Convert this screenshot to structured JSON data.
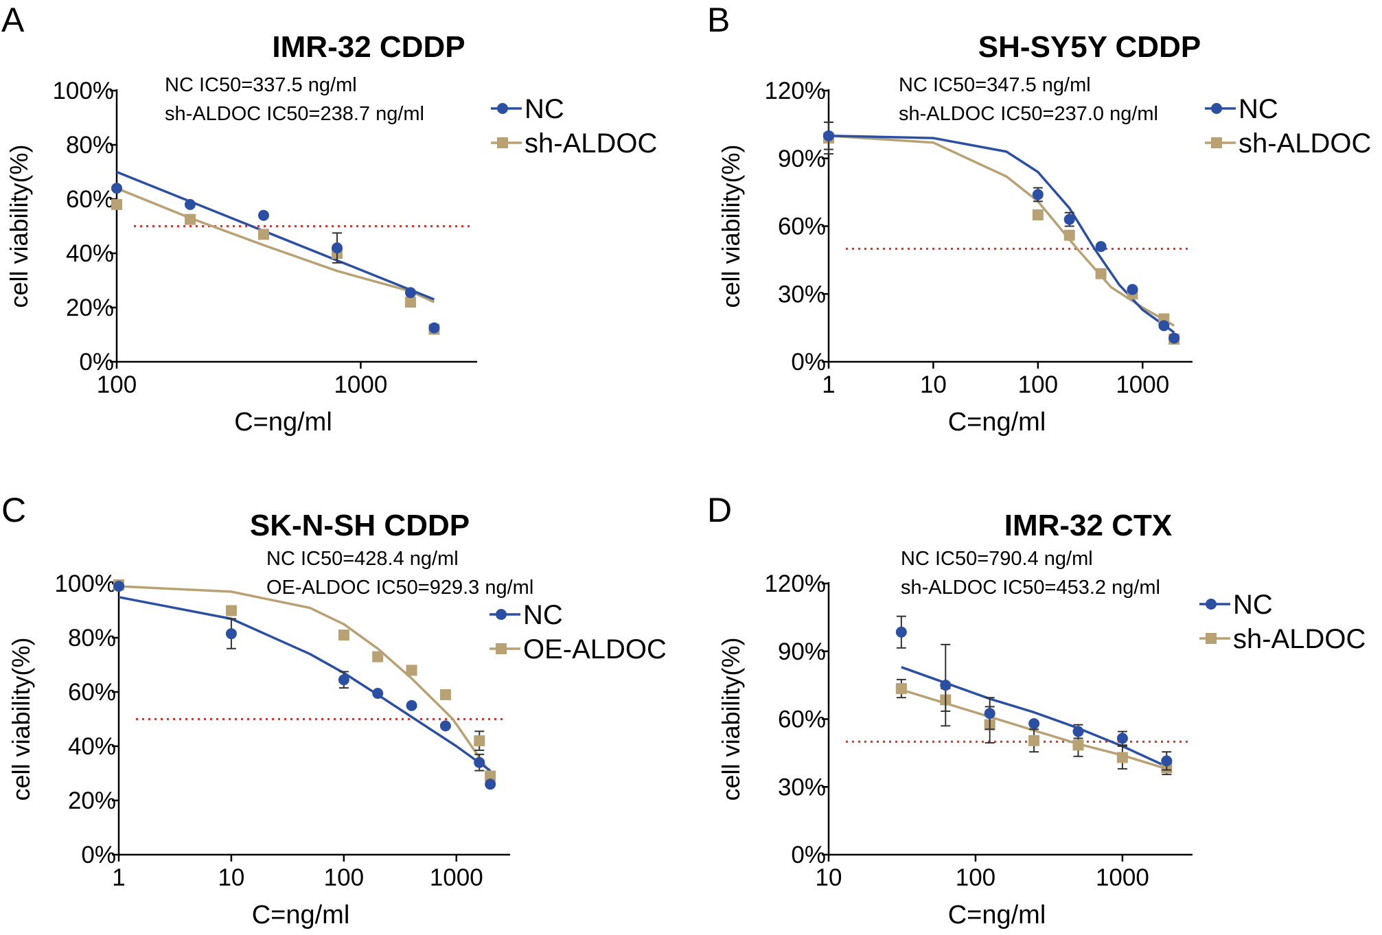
{
  "colors": {
    "nc": "#2b4fa3",
    "sh": "#b8a173",
    "ref": "#e0302a",
    "axis": "#000000"
  },
  "chart_data": [
    {
      "panel": "A",
      "type": "scatter",
      "title": "IMR-32 CDDP",
      "xlabel": "C=ng/ml",
      "ylabel": "cell viability(%)",
      "xscale": "log",
      "xlim": [
        100,
        3000
      ],
      "ylim": [
        0,
        100
      ],
      "xticks": [
        100,
        1000
      ],
      "xtick_labels": [
        "100",
        "1000"
      ],
      "yticks": [
        0,
        20,
        40,
        60,
        80,
        100
      ],
      "ytick_labels": [
        "0%",
        "20%",
        "40%",
        "60%",
        "80%",
        "100%"
      ],
      "reference_line": 50,
      "annotations": [
        "NC IC50=337.5 ng/ml",
        "sh-ALDOC IC50=238.7 ng/ml"
      ],
      "legend_position": "top-right",
      "series": [
        {
          "name": "NC",
          "marker": "circle",
          "color": "#2b4fa3",
          "x": [
            100,
            200,
            400,
            800,
            1600,
            2000
          ],
          "y": [
            64,
            58,
            54,
            42,
            25.5,
            12.5
          ],
          "err": [
            0,
            0,
            0,
            5.5,
            0,
            0
          ],
          "fit": [
            [
              100,
              70
            ],
            [
              2000,
              23
            ]
          ]
        },
        {
          "name": "sh-ALDOC",
          "marker": "square",
          "color": "#b8a173",
          "x": [
            100,
            200,
            400,
            800,
            1600,
            2000
          ],
          "y": [
            58,
            52.5,
            47,
            40,
            22,
            12
          ],
          "err": [
            0,
            0,
            0,
            0,
            0,
            0
          ],
          "fit": [
            [
              100,
              64
            ],
            [
              200,
              53
            ],
            [
              400,
              43
            ],
            [
              800,
              33.5
            ],
            [
              1600,
              26
            ],
            [
              2000,
              22
            ]
          ]
        }
      ]
    },
    {
      "panel": "B",
      "type": "scatter",
      "title": "SH-SY5Y CDDP",
      "xlabel": "C=ng/ml",
      "ylabel": "cell viability(%)",
      "xscale": "log",
      "xlim": [
        1,
        3000
      ],
      "ylim": [
        0,
        120
      ],
      "xticks": [
        1,
        10,
        100,
        1000
      ],
      "xtick_labels": [
        "1",
        "10",
        "100",
        "1000"
      ],
      "yticks": [
        0,
        30,
        60,
        90,
        120
      ],
      "ytick_labels": [
        "0%",
        "30%",
        "60%",
        "90%",
        "120%"
      ],
      "reference_line": 50,
      "annotations": [
        "NC IC50=347.5 ng/ml",
        "sh-ALDOC IC50=237.0 ng/ml"
      ],
      "legend_position": "top-right",
      "series": [
        {
          "name": "NC",
          "marker": "circle",
          "color": "#2b4fa3",
          "x": [
            1,
            100,
            200,
            400,
            800,
            1600,
            2000
          ],
          "y": [
            100,
            74,
            63,
            51,
            32,
            16,
            10.5
          ],
          "err": [
            6,
            3,
            3,
            0,
            0,
            0,
            0
          ],
          "fit": [
            [
              1,
              100
            ],
            [
              10,
              99
            ],
            [
              50,
              93
            ],
            [
              100,
              84
            ],
            [
              200,
              68
            ],
            [
              347.5,
              50
            ],
            [
              600,
              34
            ],
            [
              1000,
              23
            ],
            [
              2000,
              13
            ]
          ]
        },
        {
          "name": "sh-ALDOC",
          "marker": "square",
          "color": "#b8a173",
          "x": [
            1,
            100,
            200,
            400,
            800,
            1600,
            2000
          ],
          "y": [
            99,
            65,
            56,
            39,
            30,
            19,
            10
          ],
          "err": [
            7,
            0,
            0,
            0,
            0,
            0,
            0
          ],
          "fit": [
            [
              1,
              100
            ],
            [
              10,
              97
            ],
            [
              50,
              82
            ],
            [
              100,
              71
            ],
            [
              237,
              50
            ],
            [
              500,
              33
            ],
            [
              1000,
              24
            ],
            [
              2000,
              16
            ]
          ]
        }
      ]
    },
    {
      "panel": "C",
      "type": "scatter",
      "title": "SK-N-SH CDDP",
      "xlabel": "C=ng/ml",
      "ylabel": "cell viability(%)",
      "xscale": "log",
      "xlim": [
        1,
        3000
      ],
      "ylim": [
        0,
        100
      ],
      "xticks": [
        1,
        10,
        100,
        1000
      ],
      "xtick_labels": [
        "1",
        "10",
        "100",
        "1000"
      ],
      "yticks": [
        0,
        20,
        40,
        60,
        80,
        100
      ],
      "ytick_labels": [
        "0%",
        "20%",
        "40%",
        "60%",
        "80%",
        "100%"
      ],
      "reference_line": 50,
      "annotations": [
        "NC IC50=428.4 ng/ml",
        "OE-ALDOC IC50=929.3 ng/ml"
      ],
      "legend_position": "right",
      "series": [
        {
          "name": "NC",
          "marker": "circle",
          "color": "#2b4fa3",
          "x": [
            1,
            10,
            100,
            200,
            400,
            800,
            1600,
            2000
          ],
          "y": [
            99,
            81.5,
            64.5,
            59.5,
            55,
            47.5,
            34,
            26
          ],
          "err": [
            0,
            5.5,
            3,
            0,
            0,
            0,
            3,
            0
          ],
          "fit": [
            [
              1,
              95
            ],
            [
              10,
              87
            ],
            [
              50,
              74
            ],
            [
              100,
              67
            ],
            [
              200,
              59
            ],
            [
              428.4,
              50
            ],
            [
              1000,
              40
            ],
            [
              2000,
              31
            ]
          ]
        },
        {
          "name": "OE-ALDOC",
          "marker": "square",
          "color": "#b8a173",
          "x": [
            1,
            10,
            100,
            200,
            400,
            800,
            1600,
            2000
          ],
          "y": [
            99.5,
            90,
            81,
            73,
            68,
            59,
            42,
            29
          ],
          "err": [
            0,
            0,
            0,
            0,
            0,
            0,
            3.5,
            0
          ],
          "fit": [
            [
              1,
              99
            ],
            [
              10,
              97
            ],
            [
              50,
              91
            ],
            [
              100,
              85
            ],
            [
              200,
              76
            ],
            [
              400,
              65
            ],
            [
              929.3,
              50
            ],
            [
              2000,
              30
            ]
          ]
        }
      ]
    },
    {
      "panel": "D",
      "type": "scatter",
      "title": "IMR-32 CTX",
      "xlabel": "C=ng/ml",
      "ylabel": "cell viability(%)",
      "xscale": "log",
      "xlim": [
        10,
        3000
      ],
      "ylim": [
        0,
        120
      ],
      "xticks": [
        10,
        100,
        1000
      ],
      "xtick_labels": [
        "10",
        "100",
        "1000"
      ],
      "yticks": [
        0,
        30,
        60,
        90,
        120
      ],
      "ytick_labels": [
        "0%",
        "30%",
        "60%",
        "90%",
        "120%"
      ],
      "reference_line": 50,
      "annotations": [
        "NC IC50=790.4 ng/ml",
        "sh-ALDOC IC50=453.2 ng/ml"
      ],
      "legend_position": "right",
      "series": [
        {
          "name": "NC",
          "marker": "circle",
          "color": "#2b4fa3",
          "x": [
            31.25,
            62.5,
            125,
            250,
            500,
            1000,
            2000
          ],
          "y": [
            98.5,
            75,
            62.5,
            58,
            54.5,
            51.5,
            41.5
          ],
          "err": [
            7,
            18,
            7,
            0,
            3,
            3,
            4
          ],
          "fit": [
            [
              31.25,
              83
            ],
            [
              62.5,
              76
            ],
            [
              125,
              69
            ],
            [
              250,
              63
            ],
            [
              500,
              56
            ],
            [
              1000,
              48
            ],
            [
              2000,
              39
            ]
          ]
        },
        {
          "name": "sh-ALDOC",
          "marker": "square",
          "color": "#b8a173",
          "x": [
            31.25,
            62.5,
            125,
            250,
            500,
            1000,
            2000
          ],
          "y": [
            73.5,
            68.5,
            57.5,
            50.5,
            48.5,
            43,
            38.5
          ],
          "err": [
            4,
            5,
            8,
            5,
            5,
            5,
            3
          ],
          "fit": [
            [
              31.25,
              73
            ],
            [
              62.5,
              67
            ],
            [
              125,
              61
            ],
            [
              250,
              55
            ],
            [
              500,
              49
            ],
            [
              1000,
              44
            ],
            [
              2000,
              38
            ]
          ]
        }
      ]
    }
  ]
}
